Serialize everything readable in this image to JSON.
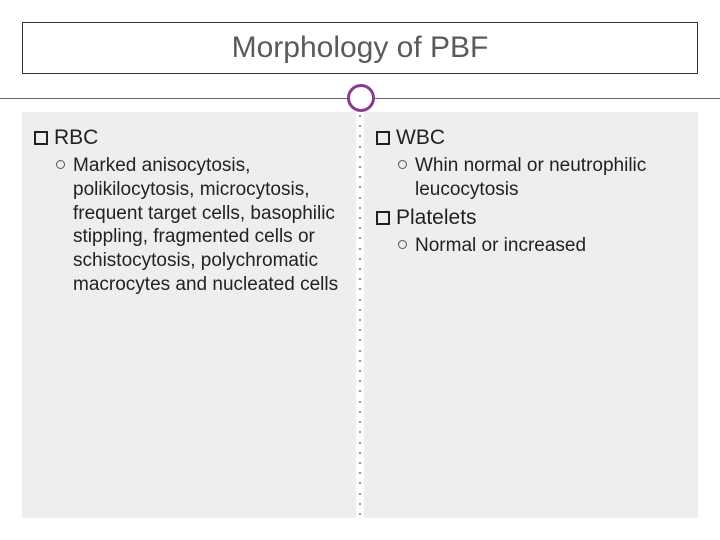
{
  "title": "Morphology of PBF",
  "accent_color": "#8b3b8b",
  "panel_bg": "#eeeeee",
  "leftPanel": {
    "sections": [
      {
        "label": "RBC",
        "items": [
          "Marked anisocytosis, polikilocytosis, microcytosis, frequent target cells, basophilic stippling, fragmented cells or schistocytosis, polychromatic macrocytes and nucleated cells"
        ]
      }
    ]
  },
  "rightPanel": {
    "sections": [
      {
        "label": "WBC",
        "items": [
          "Whin normal or neutrophilic leucocytosis"
        ]
      },
      {
        "label": "Platelets",
        "items": [
          "Normal or increased"
        ]
      }
    ]
  }
}
